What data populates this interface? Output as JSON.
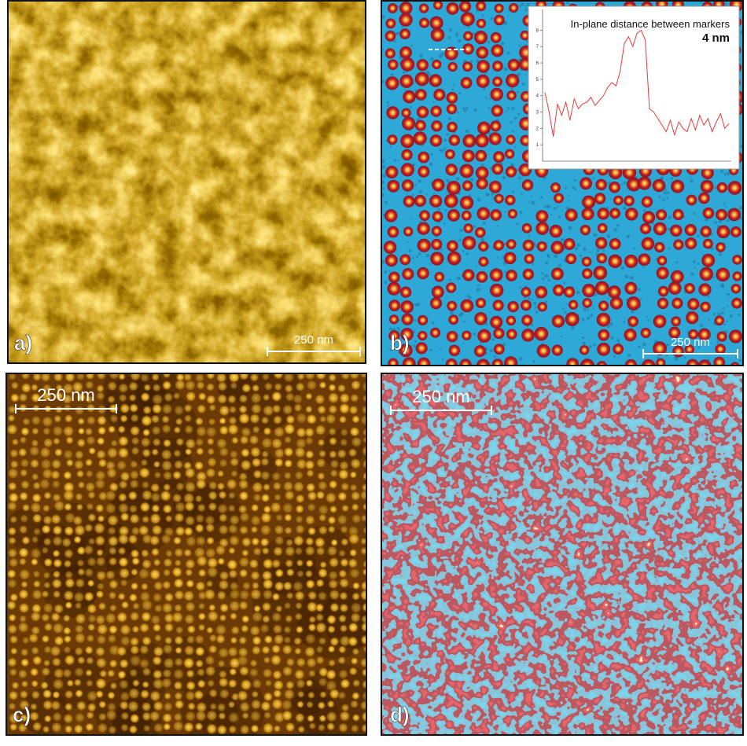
{
  "panels": [
    {
      "label": "a)",
      "scale_bar": "250 nm"
    },
    {
      "label": "b)",
      "scale_bar": "250 nm"
    },
    {
      "label": "c)",
      "scale_bar": "250 nm"
    },
    {
      "label": "d)",
      "scale_bar": "250 nm"
    }
  ],
  "inset": {
    "title": "In-plane distance between markers",
    "value": "4 nm",
    "ylim": [
      0,
      8.5
    ],
    "yticks": [
      1,
      2,
      3,
      4,
      5,
      6,
      7,
      8
    ],
    "profile": [
      4.2,
      3.0,
      1.5,
      3.5,
      2.8,
      3.6,
      2.5,
      3.8,
      3.2,
      3.5,
      3.6,
      3.9,
      3.4,
      3.7,
      4.0,
      4.5,
      4.8,
      4.6,
      5.5,
      7.2,
      7.6,
      7.0,
      7.8,
      8.0,
      7.4,
      3.2,
      3.0,
      2.6,
      2.2,
      1.8,
      2.5,
      1.6,
      2.4,
      2.0,
      1.8,
      2.6,
      1.9,
      2.8,
      2.2,
      2.6,
      1.8,
      2.4,
      2.9,
      2.0,
      2.3
    ]
  }
}
